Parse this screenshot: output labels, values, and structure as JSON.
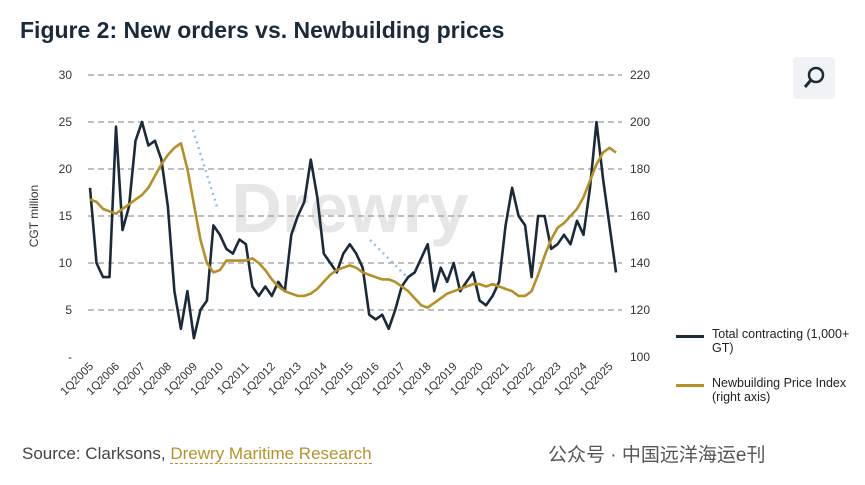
{
  "chart_data": {
    "type": "line",
    "title": "Figure 2: New orders vs. Newbuilding prices",
    "y_label": "CGT million",
    "watermark": "Drewry",
    "source": "Source: Clarksons,",
    "source_link": "Drewry Maritime Research",
    "footer_watermark": "公众号 · 中国远洋海运e刊",
    "categories": [
      "1Q2005",
      null,
      null,
      null,
      "1Q2006",
      null,
      null,
      null,
      "1Q2007",
      null,
      null,
      null,
      "1Q2008",
      null,
      null,
      null,
      "1Q2009",
      null,
      null,
      null,
      "1Q2010",
      null,
      null,
      null,
      "1Q2011",
      null,
      null,
      null,
      "1Q2012",
      null,
      null,
      null,
      "1Q2013",
      null,
      null,
      null,
      "1Q2014",
      null,
      null,
      null,
      "1Q2015",
      null,
      null,
      null,
      "1Q2016",
      null,
      null,
      null,
      "1Q2017",
      null,
      null,
      null,
      "1Q2018",
      null,
      null,
      null,
      "1Q2019",
      null,
      null,
      null,
      "1Q2020",
      null,
      null,
      null,
      "1Q2021",
      null,
      null,
      null,
      "1Q2022",
      null,
      null,
      null,
      "1Q2023",
      null,
      null,
      null,
      "1Q2024",
      null,
      null,
      null,
      "1Q2025",
      null
    ],
    "series": [
      {
        "name": "Total contracting (1,000+ GT)",
        "color": "#1b2a3a",
        "axis": "y",
        "values": [
          18,
          10,
          8.5,
          8.5,
          24.5,
          13.5,
          16,
          23,
          25,
          22.5,
          23,
          21,
          16,
          7,
          3,
          7,
          2,
          5,
          6,
          14,
          13,
          11.5,
          11,
          12.5,
          12,
          7.5,
          6.5,
          7.5,
          6.5,
          8,
          7,
          13,
          15,
          16.5,
          21,
          17,
          11,
          10,
          9,
          11,
          12,
          11,
          9.5,
          4.5,
          4,
          4.5,
          3,
          5,
          7.5,
          8.5,
          9,
          10.5,
          12,
          7,
          9.5,
          8,
          10,
          7,
          8,
          9,
          6,
          5.5,
          6.5,
          8,
          14,
          18,
          15,
          14,
          8.5,
          15,
          15,
          11.5,
          12,
          13,
          12,
          14.5,
          13,
          18,
          25,
          19,
          14,
          9
        ]
      },
      {
        "name": "Newbuilding Price Index (right axis)",
        "color": "#b58f27",
        "axis": "y2",
        "values": [
          167,
          166,
          163,
          162,
          161,
          163,
          165,
          167,
          169,
          172,
          177,
          182,
          186,
          189,
          191,
          180,
          165,
          150,
          140,
          136,
          137,
          141,
          141,
          141,
          141,
          142,
          140,
          137,
          133,
          130,
          128,
          127,
          126,
          126,
          127,
          129,
          132,
          135,
          137,
          138,
          139,
          138,
          136,
          135,
          134,
          133,
          133,
          132,
          130,
          128,
          125,
          122,
          121,
          123,
          125,
          127,
          128,
          129,
          130,
          131,
          131,
          130,
          131,
          130,
          129,
          128,
          126,
          126,
          128,
          135,
          143,
          150,
          155,
          157,
          160,
          163,
          168,
          175,
          182,
          187,
          189,
          187
        ]
      }
    ],
    "ylim": [
      0,
      30
    ],
    "yticks": [
      {
        "value": 0,
        "label": "-"
      },
      5,
      10,
      15,
      20,
      25,
      30
    ],
    "y2lim": [
      100,
      220
    ],
    "y2ticks": [
      100,
      120,
      140,
      160,
      180,
      200,
      220
    ],
    "grid": true
  }
}
